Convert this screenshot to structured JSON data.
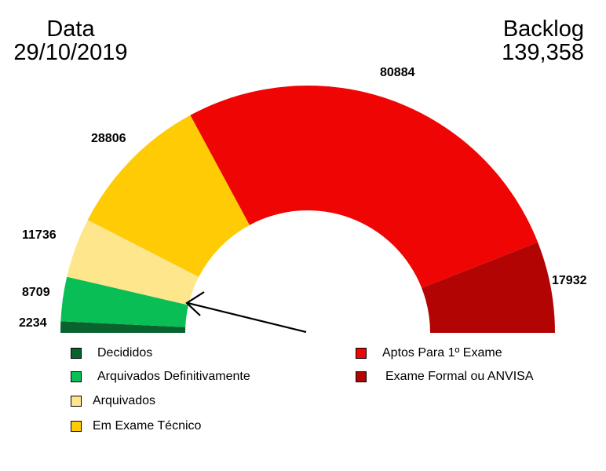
{
  "header": {
    "left_title": "Data",
    "left_value": "29/10/2019",
    "right_title": "Backlog",
    "right_value": "139,358"
  },
  "chart_data": {
    "type": "pie",
    "subtype": "semi-donut",
    "title": "",
    "categories": [
      "Decididos",
      "Arquivados Definitivamente",
      "Arquivados",
      "Em Exame Técnico",
      "Aptos Para 1º Exame",
      "Exame Formal ou ANVISA"
    ],
    "values": [
      2234,
      8709,
      11736,
      28806,
      80884,
      17932
    ],
    "colors": [
      "#08632f",
      "#09be55",
      "#fde68c",
      "#fecb05",
      "#ee0504",
      "#b20403"
    ],
    "data_labels": [
      "2234",
      "8709",
      "11736",
      "28806",
      "80884",
      "17932"
    ],
    "legend_position": "bottom",
    "annotation": "arrow pointing to boundary between Arquivados Definitivamente and Arquivados"
  },
  "legend": {
    "left": [
      {
        "label": "Decididos",
        "color": "#08632f"
      },
      {
        "label": "Arquivados Definitivamente",
        "color": "#09be55"
      },
      {
        "label": "Arquivados",
        "color": "#fde68c"
      },
      {
        "label": "Em Exame Técnico",
        "color": "#fecb05"
      }
    ],
    "right": [
      {
        "label": "Aptos Para 1º Exame",
        "color": "#ee0504"
      },
      {
        "label": "Exame Formal ou ANVISA",
        "color": "#b20403"
      }
    ]
  }
}
